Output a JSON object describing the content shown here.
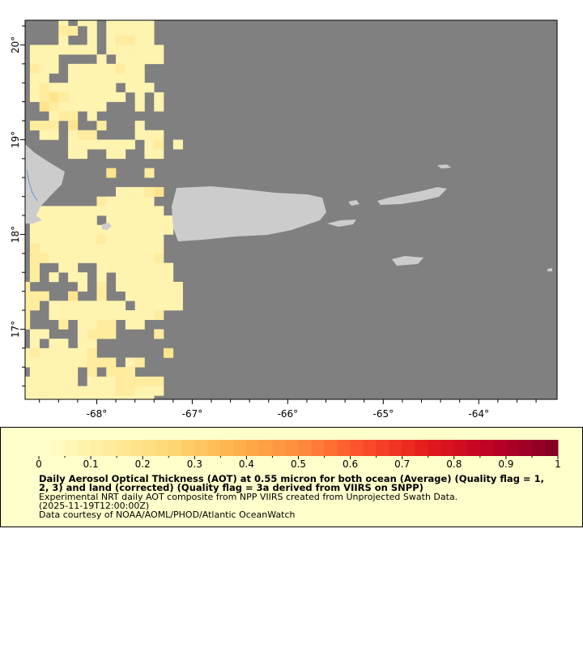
{
  "chart_data": {
    "type": "heatmap",
    "x_ticks": [
      "-68°",
      "-67°",
      "-66°",
      "-65°",
      "-64°"
    ],
    "y_ticks": [
      "20°",
      "19°",
      "18°",
      "17°"
    ],
    "x_range": [
      -68.75,
      -63.18
    ],
    "y_range": [
      16.26,
      20.26
    ],
    "cell_size_deg": 0.1,
    "grid_origin": {
      "lon": -68.8,
      "lat_top": 20.3
    },
    "grid_levels": {
      "1": 0.08,
      "2": 0.13,
      "3": 0.18
    },
    "grid_rows": [
      "....1.11.11111...",
      "....22.1.11111...",
      "....1..1.12211...",
      ".1111111.111111..",
      ".111....1.11111..",
      ".211.11111211....",
      ".11..11111111....",
      ".121111111.111...",
      ".1232111111.1.1..",
      "..3211111...1.1..",
      "...122.1.........",
      ".222.3..2...1....",
      "..11.122....111..",
      ".....1111111.12.1",
      ".....11..11..11..",
      ".................",
      ".........3...2...",
      ".................",
      "..........11123..",
      "........211111...",
      ".11111111111111..",
      ".1111111.1111111.",
      ".111111111111111.",
      ".11111112111111..",
      ".21111111111111..",
      ".22111111111112..",
      ".2..11..11111111.",
      ".2.1.11.1.111111.",
      "2.....1.2.1111111",
      "222..3..2..111111",
      "22.11111111.11111",
      "2..111111111112..",
      "2...2.1122.11....",
      ".11...1222....2..",
      ".1.11.11.........",
      "12111112.......3.",
      "1111111222.12....",
      ".11111.2.222.....",
      "111111.11122222..",
      "111111111122111..",
      "11111111111111..."
    ],
    "colorbar": {
      "min": 0,
      "max": 1,
      "ticks": [
        "0",
        "0.1",
        "0.2",
        "0.3",
        "0.4",
        "0.5",
        "0.6",
        "0.7",
        "0.8",
        "0.9",
        "1"
      ]
    },
    "colors": {
      "no_data": "#808080",
      "land": "#cccccc",
      "river": "#6699cc"
    }
  },
  "legend": {
    "title_line1": "Daily Aerosol Optical Thickness (AOT) at 0.55 micron for both ocean (Average) (Quality flag = 1,",
    "title_line2": "2, 3) and land (corrected) (Quality flag = 3a derived from VIIRS on SNPP)",
    "subtitle": "Experimental NRT daily AOT composite from NPP VIIRS created from Unprojected Swath Data.",
    "time": "(2025-11-19T12:00:00Z)",
    "credit": "Data courtesy of NOAA/AOML/PHOD/Atlantic OceanWatch"
  }
}
